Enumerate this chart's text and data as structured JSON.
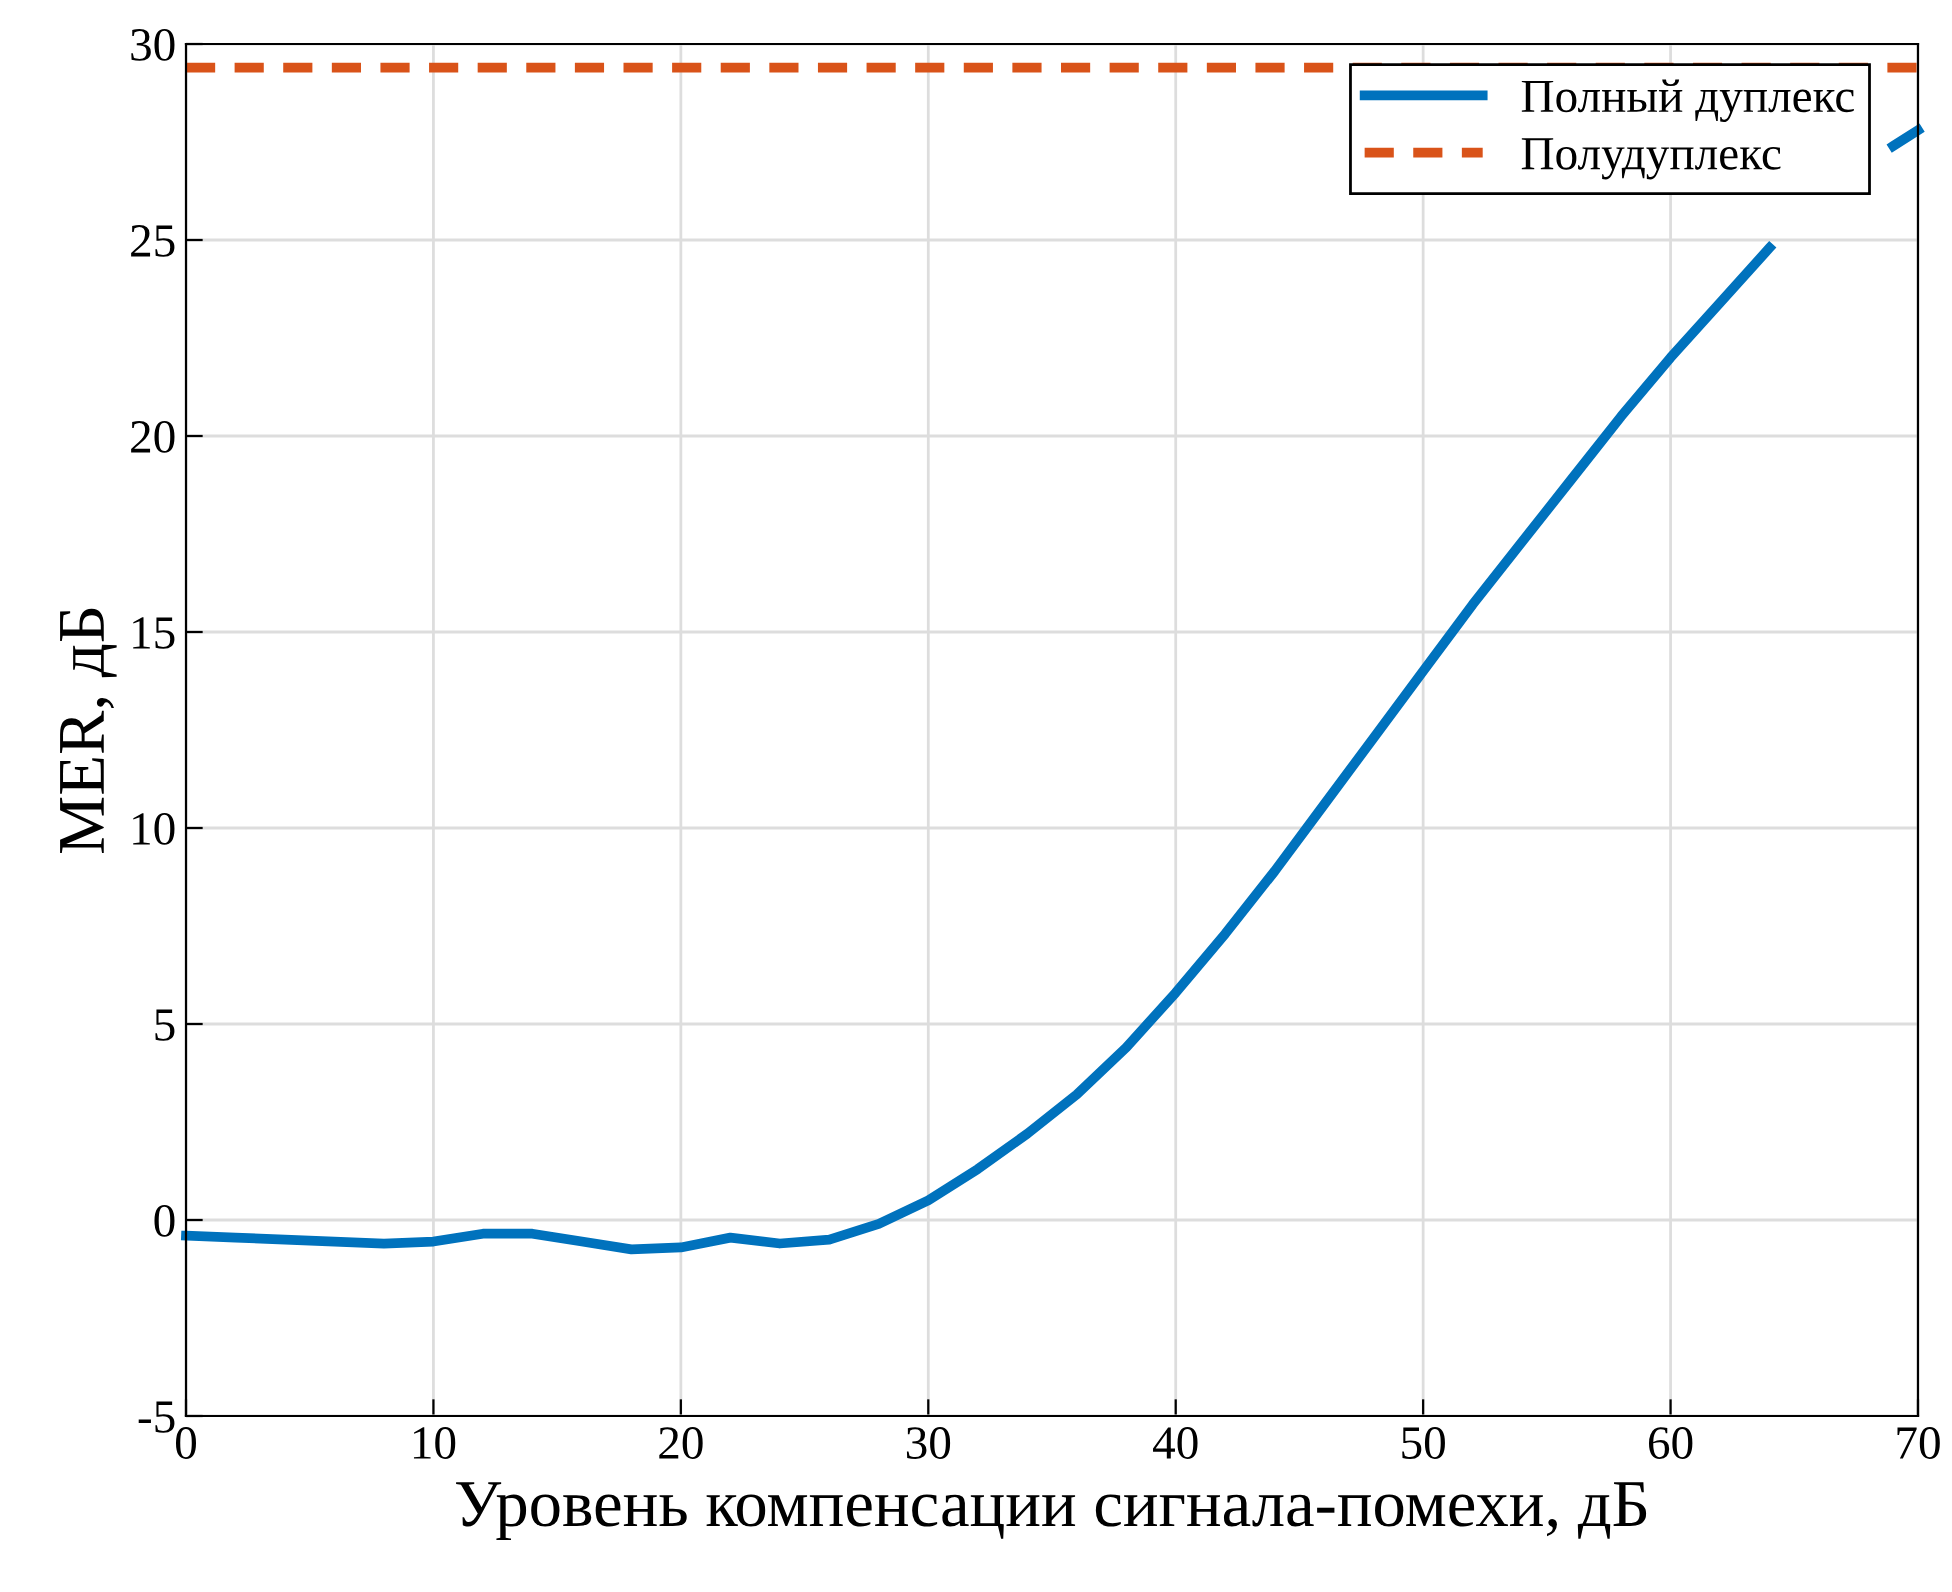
{
  "chart_data": {
    "type": "line",
    "xlabel": "Уровень компенсации сигнала-помехи, дБ",
    "ylabel": "MER, дБ",
    "xlim": [
      0,
      70
    ],
    "xticks": [
      0,
      10,
      20,
      30,
      40,
      50,
      60,
      70
    ],
    "ylim": [
      -5,
      30
    ],
    "yticks": [
      -5,
      0,
      5,
      10,
      15,
      20,
      25,
      30
    ],
    "grid": true,
    "legend": "top right",
    "series": [
      {
        "name": "Полный дуплекс",
        "color": "#0072bd",
        "line_style": "solid",
        "x": [
          0,
          2,
          4,
          6,
          8,
          10,
          12,
          14,
          16,
          18,
          20,
          22,
          24,
          26,
          28,
          30,
          32,
          34,
          36,
          38,
          40,
          42,
          44,
          46,
          48,
          50,
          52,
          54,
          56,
          58,
          60,
          62,
          64,
          66,
          68,
          69,
          70
        ],
        "values": [
          -0.4,
          -0.45,
          -0.5,
          -0.55,
          -0.6,
          -0.55,
          -0.35,
          -0.35,
          -0.55,
          -0.75,
          -0.7,
          -0.45,
          -0.6,
          -0.5,
          -0.1,
          0.5,
          1.3,
          2.2,
          3.2,
          4.4,
          5.8,
          7.3,
          8.9,
          10.6,
          12.3,
          14.0,
          15.7,
          17.3,
          18.9,
          20.5,
          22.0,
          23.4,
          24.8,
          null,
          null,
          27.4,
          27.8
        ]
      },
      {
        "name": "Полудуплекс",
        "color": "#d95319",
        "line_style": "dashed",
        "x": [
          0,
          70
        ],
        "values": [
          29.4,
          29.4
        ]
      }
    ]
  }
}
